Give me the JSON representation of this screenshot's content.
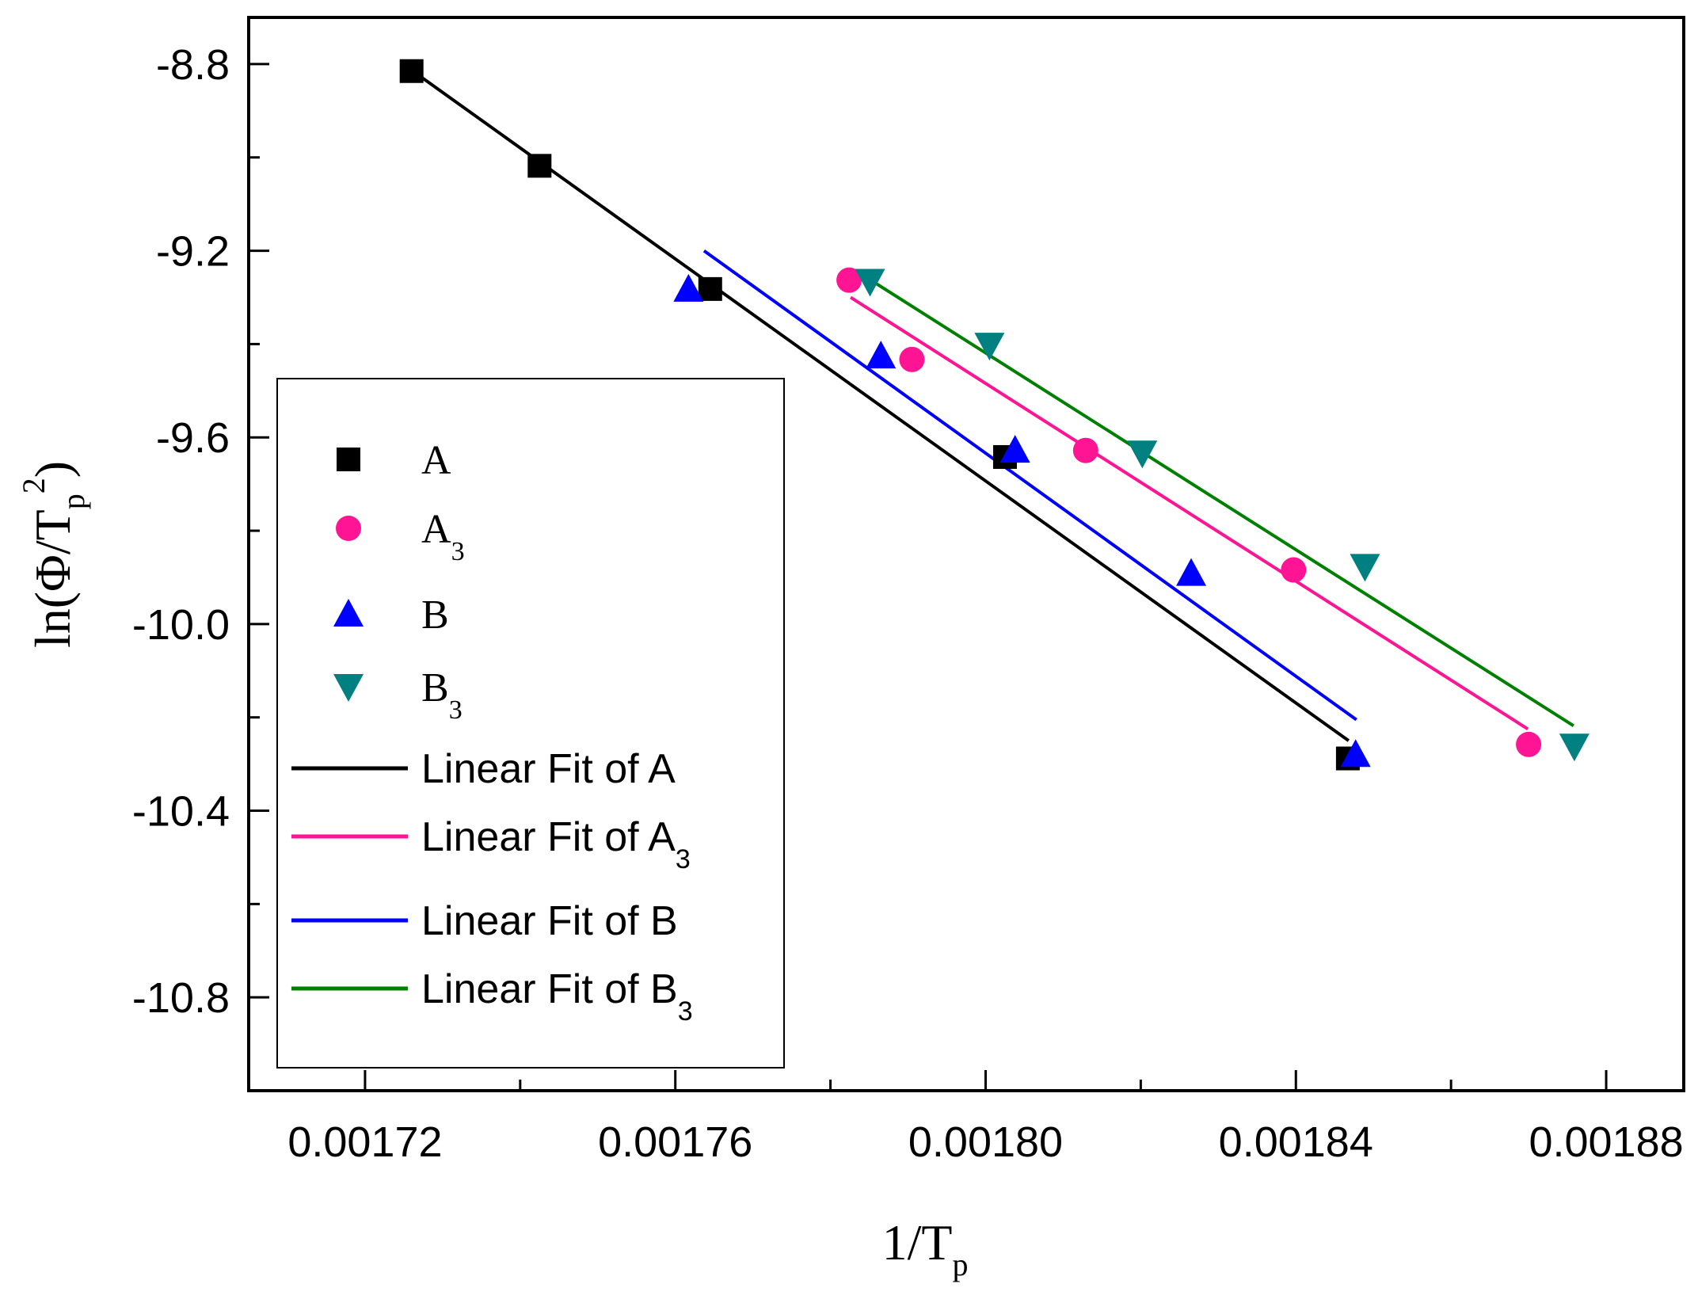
{
  "chart_data": {
    "type": "scatter",
    "title": "",
    "xlabel": "1/T",
    "xlabel_sub": "p",
    "ylabel": "ln(Φ/T",
    "ylabel_sub": "p",
    "ylabel_sup": "2",
    "ylabel_end": ")",
    "xlim": [
      0.001705,
      0.00189
    ],
    "ylim": [
      -11.0,
      -8.7
    ],
    "xticks": [
      0.00172,
      0.00176,
      0.0018,
      0.00184,
      0.00188
    ],
    "xtick_labels": [
      "0.00172",
      "0.00176",
      "0.00180",
      "0.00184",
      "0.00188"
    ],
    "yticks": [
      -8.8,
      -9.2,
      -9.6,
      -10.0,
      -10.4,
      -10.8
    ],
    "ytick_labels": [
      "-8.8",
      "-9.2",
      "-9.6",
      "-10.0",
      "-10.4",
      "-10.8"
    ],
    "series": [
      {
        "name": "A",
        "sub": "",
        "marker": "square",
        "color": "#000000",
        "x": [
          0.001726,
          0.0017425,
          0.0017645,
          0.0018025,
          0.0018467
        ],
        "y": [
          -8.815,
          -9.018,
          -9.282,
          -9.642,
          -10.288
        ]
      },
      {
        "name": "A",
        "sub": "3",
        "marker": "circle",
        "color": "#ff1493",
        "x": [
          0.0017824,
          0.0017905,
          0.0018129,
          0.0018397,
          0.00187
        ],
        "y": [
          -9.263,
          -9.433,
          -9.628,
          -9.884,
          -10.258
        ]
      },
      {
        "name": "B",
        "sub": "",
        "marker": "triangle-up",
        "color": "#0000ff",
        "x": [
          0.0017617,
          0.0017865,
          0.0018038,
          0.0018265,
          0.0018477
        ],
        "y": [
          -9.282,
          -9.425,
          -9.627,
          -9.891,
          -10.279
        ]
      },
      {
        "name": "B",
        "sub": "3",
        "marker": "triangle-down",
        "color": "#008080",
        "x": [
          0.0017851,
          0.0018005,
          0.0018202,
          0.0018489,
          0.0018759
        ],
        "y": [
          -9.266,
          -9.403,
          -9.634,
          -9.877,
          -10.262
        ]
      }
    ],
    "fits": [
      {
        "name": "Linear Fit of A",
        "sub": "",
        "color": "#000000",
        "x": [
          0.001727,
          0.0018468
        ],
        "y": [
          -8.825,
          -10.25
        ]
      },
      {
        "name": "Linear Fit of A",
        "sub": "3",
        "color": "#ff1493",
        "x": [
          0.0017826,
          0.0018699
        ],
        "y": [
          -9.3,
          -10.225
        ]
      },
      {
        "name": "Linear Fit of  B",
        "sub": "",
        "color": "#0000ff",
        "x": [
          0.0017637,
          0.0018478
        ],
        "y": [
          -9.2,
          -10.205
        ]
      },
      {
        "name": "Linear Fit of  B",
        "sub": "3",
        "color": "#008000",
        "x": [
          0.0017851,
          0.0018758
        ],
        "y": [
          -9.262,
          -10.218
        ]
      }
    ],
    "legend_position": "left"
  }
}
